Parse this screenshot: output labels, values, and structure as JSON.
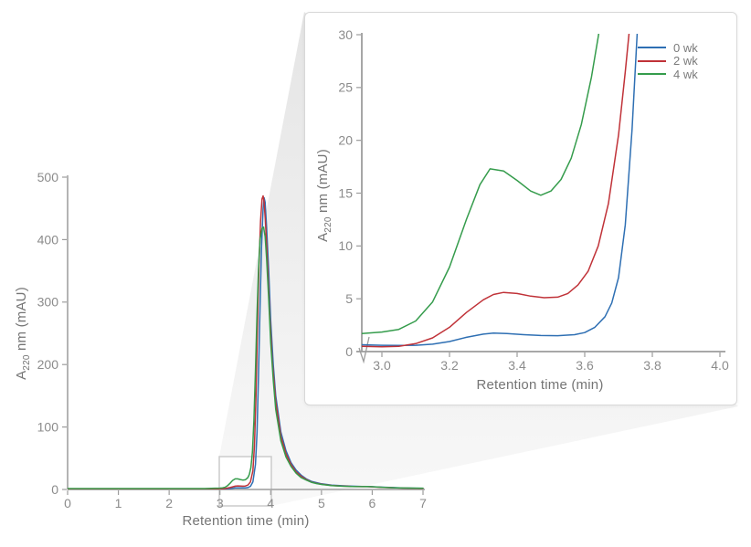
{
  "figure": {
    "kind": "chromatogram with magnified inset",
    "background": "#ffffff"
  },
  "colors": {
    "axis": "#9c9c9c",
    "tick_text": "#8b8b8b",
    "label_text": "#757575",
    "wedge_from": "#e5e5e5",
    "wedge_to": "#f8f8f8",
    "box_border": "#cbcbcb",
    "inset_border": "#d8d8d8",
    "inset_bg": "#ffffff"
  },
  "chart_data": [
    {
      "id": "main",
      "type": "line",
      "title": "",
      "xlabel": "Retention time (min)",
      "ylabel": "A220 nm (mAU)",
      "ylabel_parts": {
        "prefix": "A",
        "sub": "220",
        "suffix": " nm (mAU)"
      },
      "xlim": [
        0,
        7
      ],
      "ylim": [
        0,
        500
      ],
      "grid": false,
      "xticks": [
        {
          "v": 0,
          "label": "0"
        },
        {
          "v": 1,
          "label": "1"
        },
        {
          "v": 2,
          "label": "2"
        },
        {
          "v": 3,
          "label": "3"
        },
        {
          "v": 4,
          "label": "4"
        },
        {
          "v": 5,
          "label": "5"
        },
        {
          "v": 6,
          "label": "6"
        },
        {
          "v": 7,
          "label": "7"
        }
      ],
      "yticks": [
        {
          "v": 0,
          "label": "0"
        },
        {
          "v": 100,
          "label": "100"
        },
        {
          "v": 200,
          "label": "200"
        },
        {
          "v": 300,
          "label": "300"
        },
        {
          "v": 400,
          "label": "400"
        },
        {
          "v": 500,
          "label": "500"
        }
      ],
      "zoom_region": {
        "x": [
          3.0,
          4.0
        ],
        "comment": "gray box magnified in inset"
      },
      "series": [
        {
          "name": "0 wk",
          "color": "#2e6fb3",
          "points": [
            [
              0,
              1
            ],
            [
              0.5,
              1
            ],
            [
              1,
              1
            ],
            [
              1.5,
              1
            ],
            [
              2,
              1
            ],
            [
              2.5,
              1
            ],
            [
              2.8,
              1
            ],
            [
              3.0,
              1
            ],
            [
              3.1,
              1
            ],
            [
              3.2,
              1.5
            ],
            [
              3.3,
              2.5
            ],
            [
              3.4,
              2.5
            ],
            [
              3.5,
              2.5
            ],
            [
              3.55,
              3
            ],
            [
              3.6,
              5
            ],
            [
              3.65,
              12
            ],
            [
              3.7,
              40
            ],
            [
              3.73,
              90
            ],
            [
              3.76,
              180
            ],
            [
              3.79,
              290
            ],
            [
              3.82,
              390
            ],
            [
              3.85,
              450
            ],
            [
              3.87,
              467
            ],
            [
              3.89,
              460
            ],
            [
              3.92,
              420
            ],
            [
              3.96,
              350
            ],
            [
              4.0,
              270
            ],
            [
              4.05,
              200
            ],
            [
              4.1,
              150
            ],
            [
              4.2,
              92
            ],
            [
              4.3,
              62
            ],
            [
              4.4,
              43
            ],
            [
              4.5,
              31
            ],
            [
              4.6,
              23
            ],
            [
              4.7,
              17
            ],
            [
              4.8,
              13
            ],
            [
              4.9,
              11
            ],
            [
              5.0,
              9
            ],
            [
              5.2,
              7
            ],
            [
              5.4,
              6
            ],
            [
              5.6,
              5.2
            ],
            [
              5.8,
              4.8
            ],
            [
              5.9,
              4.8
            ],
            [
              6.0,
              4.4
            ],
            [
              6.2,
              3.6
            ],
            [
              6.4,
              3
            ],
            [
              6.6,
              2.4
            ],
            [
              6.8,
              2
            ],
            [
              7.0,
              1.8
            ]
          ]
        },
        {
          "name": "2 wk",
          "color": "#c03238",
          "points": [
            [
              0,
              1
            ],
            [
              0.5,
              1
            ],
            [
              1,
              1
            ],
            [
              1.5,
              1
            ],
            [
              2,
              1
            ],
            [
              2.5,
              1
            ],
            [
              2.8,
              1
            ],
            [
              3.0,
              1
            ],
            [
              3.1,
              1.5
            ],
            [
              3.2,
              3
            ],
            [
              3.3,
              5.3
            ],
            [
              3.35,
              5.7
            ],
            [
              3.45,
              5.3
            ],
            [
              3.5,
              5.5
            ],
            [
              3.55,
              7
            ],
            [
              3.6,
              12
            ],
            [
              3.65,
              30
            ],
            [
              3.68,
              70
            ],
            [
              3.71,
              150
            ],
            [
              3.74,
              260
            ],
            [
              3.77,
              360
            ],
            [
              3.8,
              430
            ],
            [
              3.83,
              465
            ],
            [
              3.85,
              470
            ],
            [
              3.87,
              460
            ],
            [
              3.9,
              425
            ],
            [
              3.94,
              355
            ],
            [
              3.98,
              280
            ],
            [
              4.03,
              205
            ],
            [
              4.1,
              140
            ],
            [
              4.2,
              85
            ],
            [
              4.3,
              57
            ],
            [
              4.4,
              40
            ],
            [
              4.5,
              28
            ],
            [
              4.6,
              21
            ],
            [
              4.7,
              16
            ],
            [
              4.8,
              12
            ],
            [
              4.9,
              10
            ],
            [
              5.0,
              8.5
            ],
            [
              5.2,
              6.5
            ],
            [
              5.4,
              5.5
            ],
            [
              5.6,
              4.8
            ],
            [
              5.8,
              4.5
            ],
            [
              5.9,
              4.6
            ],
            [
              6.0,
              4.2
            ],
            [
              6.2,
              3.4
            ],
            [
              6.4,
              2.8
            ],
            [
              6.6,
              2.2
            ],
            [
              7.0,
              1.6
            ]
          ]
        },
        {
          "name": "4 wk",
          "color": "#359c4c",
          "points": [
            [
              0,
              1.5
            ],
            [
              0.5,
              1.5
            ],
            [
              1,
              1.5
            ],
            [
              1.5,
              1.5
            ],
            [
              2,
              1.5
            ],
            [
              2.5,
              1.5
            ],
            [
              2.7,
              1.5
            ],
            [
              2.9,
              2
            ],
            [
              3.0,
              2.2
            ],
            [
              3.05,
              2.6
            ],
            [
              3.1,
              3.5
            ],
            [
              3.15,
              6
            ],
            [
              3.2,
              10
            ],
            [
              3.25,
              14.5
            ],
            [
              3.3,
              17
            ],
            [
              3.35,
              17
            ],
            [
              3.4,
              16
            ],
            [
              3.45,
              15
            ],
            [
              3.5,
              15.5
            ],
            [
              3.55,
              19
            ],
            [
              3.58,
              24
            ],
            [
              3.61,
              35
            ],
            [
              3.64,
              60
            ],
            [
              3.67,
              110
            ],
            [
              3.7,
              190
            ],
            [
              3.73,
              280
            ],
            [
              3.76,
              350
            ],
            [
              3.79,
              400
            ],
            [
              3.83,
              418
            ],
            [
              3.86,
              420
            ],
            [
              3.89,
              405
            ],
            [
              3.92,
              370
            ],
            [
              3.96,
              305
            ],
            [
              4.0,
              235
            ],
            [
              4.05,
              175
            ],
            [
              4.1,
              128
            ],
            [
              4.2,
              78
            ],
            [
              4.3,
              52
            ],
            [
              4.4,
              37
            ],
            [
              4.5,
              26
            ],
            [
              4.6,
              19
            ],
            [
              4.7,
              15
            ],
            [
              4.8,
              11.5
            ],
            [
              4.9,
              9.5
            ],
            [
              5.0,
              8
            ],
            [
              5.2,
              6.2
            ],
            [
              5.4,
              5.2
            ],
            [
              5.6,
              4.8
            ],
            [
              5.8,
              4.6
            ],
            [
              5.9,
              4.8
            ],
            [
              6.0,
              4.4
            ],
            [
              6.2,
              3.5
            ],
            [
              6.4,
              2.8
            ],
            [
              6.6,
              2.3
            ],
            [
              7.0,
              2
            ]
          ]
        }
      ]
    },
    {
      "id": "inset",
      "type": "line",
      "title": "",
      "xlabel": "Retention time (min)",
      "ylabel": "A220 nm (mAU)",
      "ylabel_parts": {
        "prefix": "A",
        "sub": "220",
        "suffix": " nm (mAU)"
      },
      "xlim": [
        3.0,
        4.0
      ],
      "ylim": [
        0,
        30
      ],
      "grid": false,
      "axis_break_on_x": true,
      "legend_position": "upper right",
      "xticks": [
        {
          "v": 3.0,
          "label": "3.0"
        },
        {
          "v": 3.2,
          "label": "3.2"
        },
        {
          "v": 3.4,
          "label": "3.4"
        },
        {
          "v": 3.6,
          "label": "3.6"
        },
        {
          "v": 3.8,
          "label": "3.8"
        },
        {
          "v": 4.0,
          "label": "4.0"
        }
      ],
      "yticks": [
        {
          "v": 0,
          "label": "0"
        },
        {
          "v": 5,
          "label": "5"
        },
        {
          "v": 10,
          "label": "10"
        },
        {
          "v": 15,
          "label": "15"
        },
        {
          "v": 20,
          "label": "20"
        },
        {
          "v": 25,
          "label": "25"
        },
        {
          "v": 30,
          "label": "30"
        }
      ],
      "series": [
        {
          "name": "0 wk",
          "color": "#2e6fb3",
          "points": [
            [
              2.94,
              0.65
            ],
            [
              3.0,
              0.6
            ],
            [
              3.05,
              0.58
            ],
            [
              3.1,
              0.6
            ],
            [
              3.15,
              0.7
            ],
            [
              3.2,
              0.95
            ],
            [
              3.25,
              1.35
            ],
            [
              3.3,
              1.65
            ],
            [
              3.33,
              1.75
            ],
            [
              3.37,
              1.7
            ],
            [
              3.42,
              1.6
            ],
            [
              3.47,
              1.52
            ],
            [
              3.52,
              1.5
            ],
            [
              3.57,
              1.6
            ],
            [
              3.6,
              1.8
            ],
            [
              3.63,
              2.3
            ],
            [
              3.66,
              3.3
            ],
            [
              3.68,
              4.6
            ],
            [
              3.7,
              7
            ],
            [
              3.72,
              12
            ],
            [
              3.74,
              21
            ],
            [
              3.76,
              33
            ]
          ]
        },
        {
          "name": "2 wk",
          "color": "#c03238",
          "points": [
            [
              2.94,
              0.5
            ],
            [
              3.0,
              0.45
            ],
            [
              3.05,
              0.5
            ],
            [
              3.1,
              0.75
            ],
            [
              3.15,
              1.3
            ],
            [
              3.2,
              2.3
            ],
            [
              3.25,
              3.7
            ],
            [
              3.3,
              4.9
            ],
            [
              3.33,
              5.4
            ],
            [
              3.36,
              5.6
            ],
            [
              3.4,
              5.5
            ],
            [
              3.44,
              5.25
            ],
            [
              3.48,
              5.1
            ],
            [
              3.52,
              5.15
            ],
            [
              3.55,
              5.5
            ],
            [
              3.58,
              6.3
            ],
            [
              3.61,
              7.6
            ],
            [
              3.64,
              10
            ],
            [
              3.67,
              14
            ],
            [
              3.7,
              20.5
            ],
            [
              3.72,
              26.5
            ],
            [
              3.74,
              33
            ]
          ]
        },
        {
          "name": "4 wk",
          "color": "#359c4c",
          "points": [
            [
              2.94,
              1.7
            ],
            [
              3.0,
              1.85
            ],
            [
              3.05,
              2.1
            ],
            [
              3.1,
              2.9
            ],
            [
              3.15,
              4.7
            ],
            [
              3.2,
              8
            ],
            [
              3.25,
              12.5
            ],
            [
              3.29,
              15.8
            ],
            [
              3.32,
              17.3
            ],
            [
              3.36,
              17.1
            ],
            [
              3.4,
              16.2
            ],
            [
              3.44,
              15.2
            ],
            [
              3.47,
              14.8
            ],
            [
              3.5,
              15.2
            ],
            [
              3.53,
              16.3
            ],
            [
              3.56,
              18.3
            ],
            [
              3.59,
              21.5
            ],
            [
              3.62,
              26
            ],
            [
              3.64,
              29.8
            ],
            [
              3.66,
              34
            ]
          ]
        }
      ]
    }
  ],
  "legend": {
    "items": [
      {
        "label": "0 wk",
        "color": "#2e6fb3"
      },
      {
        "label": "2 wk",
        "color": "#c03238"
      },
      {
        "label": "4 wk",
        "color": "#359c4c"
      }
    ]
  }
}
